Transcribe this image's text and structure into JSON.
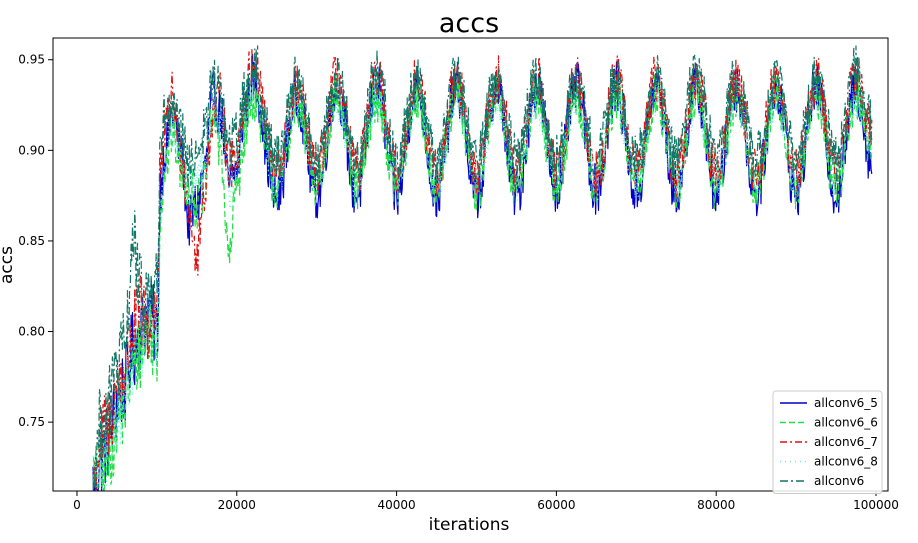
{
  "chart_data": {
    "type": "line",
    "title": "accs",
    "xlabel": "iterations",
    "ylabel": "accs",
    "xlim": [
      -3000,
      101500
    ],
    "ylim": [
      0.712,
      0.962
    ],
    "xticks": [
      0,
      20000,
      40000,
      60000,
      80000,
      100000
    ],
    "xtick_labels": [
      "0",
      "20000",
      "40000",
      "60000",
      "80000",
      "100000"
    ],
    "yticks": [
      0.75,
      0.8,
      0.85,
      0.9,
      0.95
    ],
    "ytick_labels": [
      "0.75",
      "0.80",
      "0.85",
      "0.90",
      "0.95"
    ],
    "grid": false,
    "legend_position": "lower-right",
    "period": 5000,
    "series": [
      {
        "name": "allconv6_5",
        "color": "#0000cc",
        "dash": "",
        "points": [
          [
            2000,
            0.716
          ],
          [
            3000,
            0.73
          ],
          [
            4000,
            0.74
          ],
          [
            5000,
            0.76
          ],
          [
            6000,
            0.77
          ],
          [
            7000,
            0.79
          ],
          [
            8000,
            0.8
          ],
          [
            9000,
            0.81
          ],
          [
            10000,
            0.8
          ],
          [
            10500,
            0.88
          ],
          [
            11000,
            0.9
          ],
          [
            12000,
            0.92
          ],
          [
            13000,
            0.9
          ],
          [
            14000,
            0.86
          ],
          [
            15000,
            0.87
          ],
          [
            16000,
            0.89
          ],
          [
            17000,
            0.93
          ],
          [
            18000,
            0.92
          ],
          [
            19000,
            0.88
          ],
          [
            20000,
            0.89
          ],
          [
            21000,
            0.92
          ],
          [
            22000,
            0.94
          ],
          [
            25000,
            0.873
          ],
          [
            27500,
            0.93
          ],
          [
            30000,
            0.875
          ],
          [
            32500,
            0.935
          ],
          [
            35000,
            0.875
          ],
          [
            37500,
            0.935
          ],
          [
            40000,
            0.875
          ],
          [
            42500,
            0.935
          ],
          [
            45000,
            0.875
          ],
          [
            47500,
            0.935
          ],
          [
            50000,
            0.875
          ],
          [
            52500,
            0.935
          ],
          [
            55000,
            0.875
          ],
          [
            57500,
            0.935
          ],
          [
            60000,
            0.88
          ],
          [
            62500,
            0.935
          ],
          [
            65000,
            0.878
          ],
          [
            67500,
            0.935
          ],
          [
            70000,
            0.876
          ],
          [
            72500,
            0.935
          ],
          [
            75000,
            0.876
          ],
          [
            77500,
            0.935
          ],
          [
            80000,
            0.876
          ],
          [
            82500,
            0.935
          ],
          [
            85000,
            0.876
          ],
          [
            87500,
            0.935
          ],
          [
            90000,
            0.876
          ],
          [
            92500,
            0.935
          ],
          [
            95000,
            0.876
          ],
          [
            97500,
            0.935
          ],
          [
            99500,
            0.893
          ]
        ]
      },
      {
        "name": "allconv6_6",
        "color": "#22dd44",
        "dash": "6,3",
        "points": [
          [
            2000,
            0.716
          ],
          [
            3000,
            0.72
          ],
          [
            4000,
            0.73
          ],
          [
            5000,
            0.75
          ],
          [
            6000,
            0.76
          ],
          [
            7000,
            0.78
          ],
          [
            8000,
            0.79
          ],
          [
            9000,
            0.8
          ],
          [
            10000,
            0.79
          ],
          [
            10500,
            0.87
          ],
          [
            11000,
            0.89
          ],
          [
            12000,
            0.91
          ],
          [
            13000,
            0.89
          ],
          [
            14000,
            0.88
          ],
          [
            15000,
            0.87
          ],
          [
            16000,
            0.88
          ],
          [
            17000,
            0.92
          ],
          [
            18000,
            0.9
          ],
          [
            19000,
            0.84
          ],
          [
            20000,
            0.88
          ],
          [
            21000,
            0.91
          ],
          [
            22000,
            0.93
          ],
          [
            25000,
            0.88
          ],
          [
            27500,
            0.925
          ],
          [
            30000,
            0.88
          ],
          [
            32500,
            0.93
          ],
          [
            35000,
            0.88
          ],
          [
            37500,
            0.93
          ],
          [
            40000,
            0.88
          ],
          [
            42500,
            0.93
          ],
          [
            45000,
            0.88
          ],
          [
            47500,
            0.93
          ],
          [
            50000,
            0.878
          ],
          [
            52500,
            0.93
          ],
          [
            55000,
            0.88
          ],
          [
            57500,
            0.93
          ],
          [
            60000,
            0.882
          ],
          [
            62500,
            0.93
          ],
          [
            65000,
            0.88
          ],
          [
            67500,
            0.93
          ],
          [
            70000,
            0.88
          ],
          [
            72500,
            0.93
          ],
          [
            75000,
            0.88
          ],
          [
            77500,
            0.93
          ],
          [
            80000,
            0.88
          ],
          [
            82500,
            0.93
          ],
          [
            85000,
            0.88
          ],
          [
            87500,
            0.93
          ],
          [
            90000,
            0.88
          ],
          [
            92500,
            0.93
          ],
          [
            95000,
            0.88
          ],
          [
            97500,
            0.93
          ],
          [
            99500,
            0.9
          ]
        ]
      },
      {
        "name": "allconv6_7",
        "color": "#dd1111",
        "dash": "7,3,2,3",
        "points": [
          [
            2000,
            0.716
          ],
          [
            3000,
            0.74
          ],
          [
            4000,
            0.75
          ],
          [
            5000,
            0.77
          ],
          [
            6000,
            0.78
          ],
          [
            7000,
            0.8
          ],
          [
            8000,
            0.81
          ],
          [
            9000,
            0.8
          ],
          [
            10000,
            0.82
          ],
          [
            10500,
            0.89
          ],
          [
            11000,
            0.91
          ],
          [
            12000,
            0.93
          ],
          [
            13000,
            0.9
          ],
          [
            14000,
            0.87
          ],
          [
            15000,
            0.84
          ],
          [
            16000,
            0.88
          ],
          [
            17000,
            0.92
          ],
          [
            18000,
            0.93
          ],
          [
            19000,
            0.89
          ],
          [
            20000,
            0.9
          ],
          [
            21000,
            0.93
          ],
          [
            22000,
            0.95
          ],
          [
            25000,
            0.888
          ],
          [
            27500,
            0.935
          ],
          [
            30000,
            0.888
          ],
          [
            32500,
            0.94
          ],
          [
            35000,
            0.888
          ],
          [
            37500,
            0.94
          ],
          [
            40000,
            0.888
          ],
          [
            42500,
            0.94
          ],
          [
            45000,
            0.888
          ],
          [
            47500,
            0.94
          ],
          [
            50000,
            0.888
          ],
          [
            52500,
            0.94
          ],
          [
            55000,
            0.888
          ],
          [
            57500,
            0.94
          ],
          [
            60000,
            0.888
          ],
          [
            62500,
            0.94
          ],
          [
            65000,
            0.888
          ],
          [
            67500,
            0.94
          ],
          [
            70000,
            0.888
          ],
          [
            72500,
            0.94
          ],
          [
            75000,
            0.888
          ],
          [
            77500,
            0.94
          ],
          [
            80000,
            0.888
          ],
          [
            82500,
            0.94
          ],
          [
            85000,
            0.888
          ],
          [
            87500,
            0.94
          ],
          [
            90000,
            0.888
          ],
          [
            92500,
            0.94
          ],
          [
            95000,
            0.888
          ],
          [
            97500,
            0.94
          ],
          [
            99500,
            0.91
          ]
        ]
      },
      {
        "name": "allconv6_8",
        "color": "#66eedd",
        "dash": "1,4",
        "points": [
          [
            2000,
            0.716
          ],
          [
            3000,
            0.725
          ],
          [
            4000,
            0.735
          ],
          [
            5000,
            0.755
          ],
          [
            6000,
            0.765
          ],
          [
            7000,
            0.785
          ],
          [
            8000,
            0.795
          ],
          [
            9000,
            0.805
          ],
          [
            10000,
            0.8
          ],
          [
            10500,
            0.875
          ],
          [
            11000,
            0.895
          ],
          [
            12000,
            0.915
          ],
          [
            13000,
            0.9
          ],
          [
            14000,
            0.88
          ],
          [
            15000,
            0.885
          ],
          [
            16000,
            0.895
          ],
          [
            17000,
            0.925
          ],
          [
            18000,
            0.915
          ],
          [
            19000,
            0.88
          ],
          [
            20000,
            0.895
          ],
          [
            21000,
            0.92
          ],
          [
            22000,
            0.935
          ],
          [
            25000,
            0.885
          ],
          [
            27500,
            0.93
          ],
          [
            30000,
            0.885
          ],
          [
            32500,
            0.93
          ],
          [
            35000,
            0.885
          ],
          [
            37500,
            0.93
          ],
          [
            40000,
            0.885
          ],
          [
            42500,
            0.93
          ],
          [
            45000,
            0.885
          ],
          [
            47500,
            0.93
          ],
          [
            50000,
            0.885
          ],
          [
            52500,
            0.93
          ],
          [
            55000,
            0.885
          ],
          [
            57500,
            0.93
          ],
          [
            60000,
            0.885
          ],
          [
            62500,
            0.93
          ],
          [
            65000,
            0.885
          ],
          [
            67500,
            0.93
          ],
          [
            70000,
            0.885
          ],
          [
            72500,
            0.93
          ],
          [
            75000,
            0.885
          ],
          [
            77500,
            0.93
          ],
          [
            80000,
            0.885
          ],
          [
            82500,
            0.93
          ],
          [
            85000,
            0.885
          ],
          [
            87500,
            0.93
          ],
          [
            90000,
            0.885
          ],
          [
            92500,
            0.93
          ],
          [
            95000,
            0.885
          ],
          [
            97500,
            0.93
          ],
          [
            99500,
            0.905
          ]
        ]
      },
      {
        "name": "allconv6",
        "color": "#117766",
        "dash": "8,3,2,3",
        "points": [
          [
            2000,
            0.716
          ],
          [
            3000,
            0.75
          ],
          [
            4000,
            0.76
          ],
          [
            5000,
            0.78
          ],
          [
            6000,
            0.79
          ],
          [
            7000,
            0.85
          ],
          [
            8000,
            0.82
          ],
          [
            9000,
            0.82
          ],
          [
            10000,
            0.83
          ],
          [
            10500,
            0.9
          ],
          [
            11000,
            0.92
          ],
          [
            12000,
            0.92
          ],
          [
            13000,
            0.91
          ],
          [
            14000,
            0.89
          ],
          [
            15000,
            0.9
          ],
          [
            16000,
            0.91
          ],
          [
            17000,
            0.94
          ],
          [
            18000,
            0.93
          ],
          [
            19000,
            0.9
          ],
          [
            20000,
            0.91
          ],
          [
            21000,
            0.93
          ],
          [
            22000,
            0.945
          ],
          [
            25000,
            0.895
          ],
          [
            27500,
            0.94
          ],
          [
            30000,
            0.895
          ],
          [
            32500,
            0.94
          ],
          [
            35000,
            0.895
          ],
          [
            37500,
            0.945
          ],
          [
            40000,
            0.895
          ],
          [
            42500,
            0.94
          ],
          [
            45000,
            0.895
          ],
          [
            47500,
            0.94
          ],
          [
            50000,
            0.895
          ],
          [
            52500,
            0.94
          ],
          [
            55000,
            0.895
          ],
          [
            57500,
            0.94
          ],
          [
            60000,
            0.895
          ],
          [
            62500,
            0.94
          ],
          [
            65000,
            0.895
          ],
          [
            67500,
            0.94
          ],
          [
            70000,
            0.895
          ],
          [
            72500,
            0.94
          ],
          [
            75000,
            0.895
          ],
          [
            77500,
            0.945
          ],
          [
            80000,
            0.895
          ],
          [
            82500,
            0.94
          ],
          [
            85000,
            0.895
          ],
          [
            87500,
            0.94
          ],
          [
            90000,
            0.895
          ],
          [
            92500,
            0.94
          ],
          [
            95000,
            0.895
          ],
          [
            97500,
            0.945
          ],
          [
            99500,
            0.915
          ]
        ]
      }
    ]
  }
}
